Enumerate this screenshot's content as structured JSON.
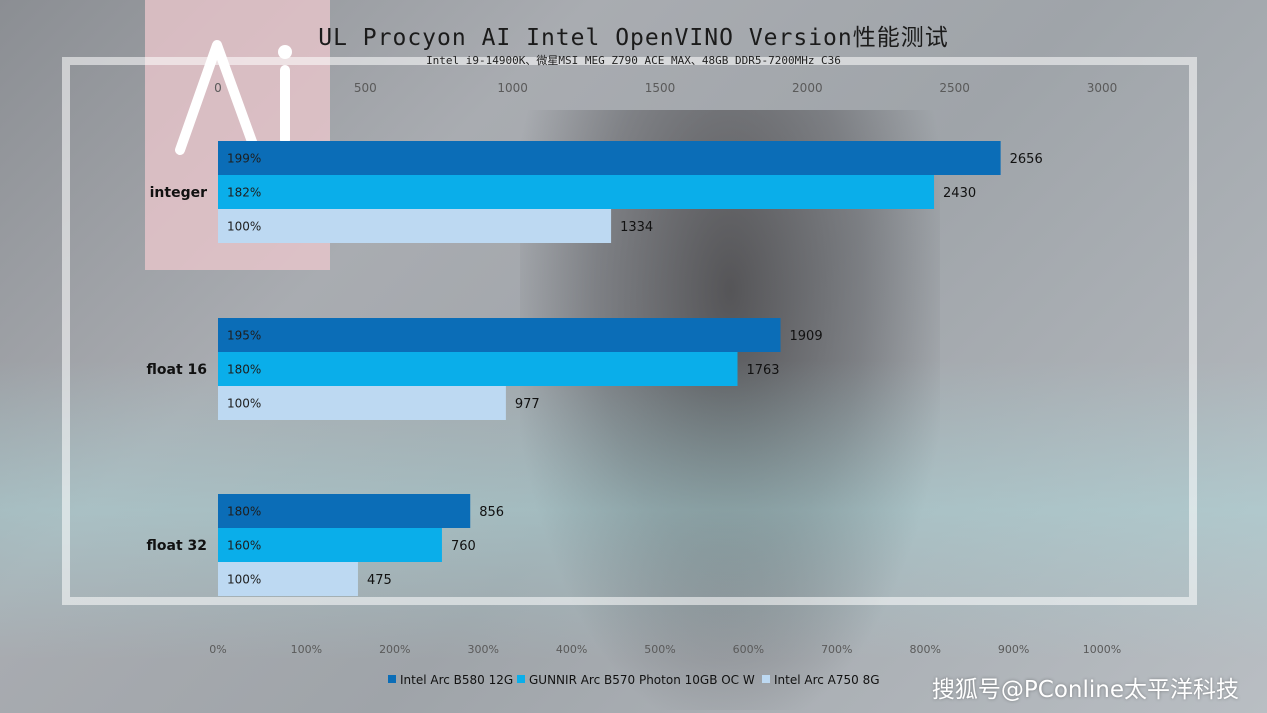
{
  "title": "UL Procyon AI Intel OpenVINO Version性能测试",
  "subtitle": "Intel i9-14900K、微星MSI MEG Z790 ACE MAX、48GB DDR5-7200MHz C36",
  "watermark": "搜狐号@PConline太平洋科技",
  "chart_data": {
    "type": "bar",
    "orientation": "horizontal",
    "categories": [
      "integer",
      "float 16",
      "float 32"
    ],
    "series": [
      {
        "name": "Intel Arc B580 12G",
        "values": [
          2656,
          1909,
          856
        ],
        "percent_labels": [
          "199%",
          "195%",
          "180%"
        ],
        "color": "#0b6db7"
      },
      {
        "name": "GUNNIR Arc B570 Photon 10GB OC W",
        "values": [
          2430,
          1763,
          760
        ],
        "percent_labels": [
          "182%",
          "180%",
          "160%"
        ],
        "color": "#0aaeea"
      },
      {
        "name": "Intel Arc A750 8G",
        "values": [
          1334,
          977,
          475
        ],
        "percent_labels": [
          "100%",
          "100%",
          "100%"
        ],
        "color": "#bdd9f2"
      }
    ],
    "top_axis": {
      "range": [
        0,
        3000
      ],
      "ticks": [
        "0",
        "500",
        "1000",
        "1500",
        "2000",
        "2500",
        "3000"
      ]
    },
    "bottom_axis": {
      "range": [
        0,
        1000
      ],
      "ticks": [
        "0%",
        "100%",
        "200%",
        "300%",
        "400%",
        "500%",
        "600%",
        "700%",
        "800%",
        "900%",
        "1000%"
      ]
    },
    "legend_position": "bottom-center",
    "grid": false
  }
}
